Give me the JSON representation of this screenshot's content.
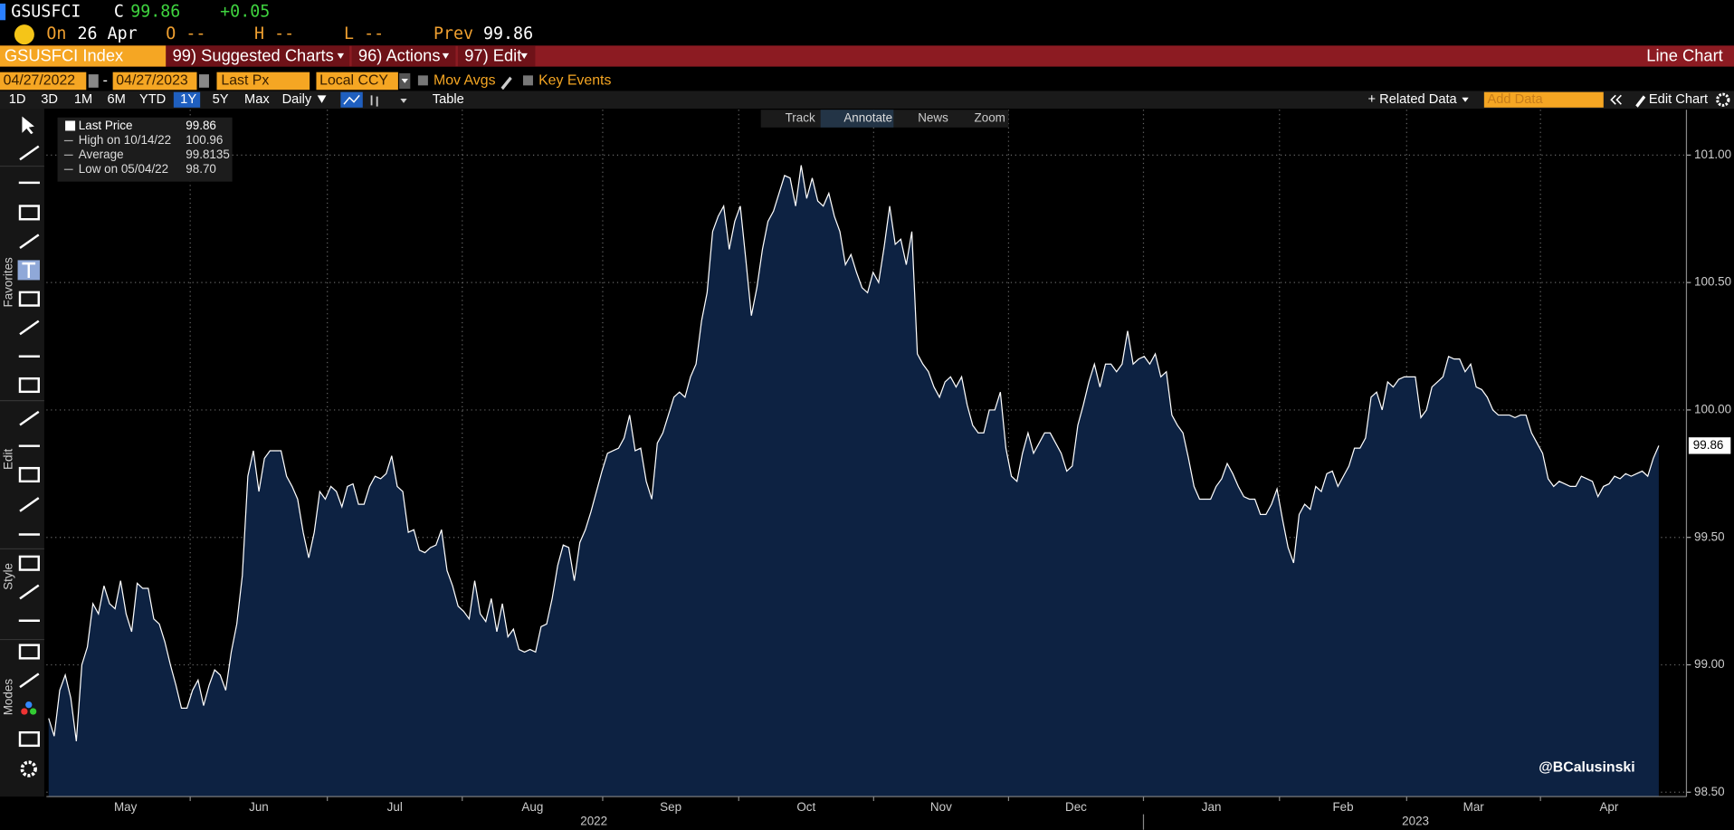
{
  "header": {
    "ticker": "GSUSFCI",
    "c_label": "C",
    "last": "99.86",
    "change": "+0.05",
    "on_label": "On",
    "date": "26 Apr",
    "open": "O --",
    "high": "H --",
    "low": "L --",
    "prev_label": "Prev",
    "prev": "99.86"
  },
  "menu": {
    "security": "GSUSFCI Index",
    "items": [
      "99) Suggested Charts",
      "96) Actions",
      "97) Edit"
    ],
    "chart_type": "Line Chart"
  },
  "controls": {
    "start_date": "04/27/2022",
    "dash": "-",
    "end_date": "04/27/2023",
    "field": "Last Px",
    "currency": "Local CCY",
    "options": [
      "Mov Avgs",
      "Key Events"
    ]
  },
  "toolbar": {
    "periods": [
      {
        "label": "1D"
      },
      {
        "label": "3D"
      },
      {
        "label": "1M"
      },
      {
        "label": "6M"
      },
      {
        "label": "YTD"
      },
      {
        "label": "1Y",
        "active": true
      },
      {
        "label": "5Y"
      },
      {
        "label": "Max"
      }
    ],
    "frequency": "Daily",
    "table": "Table",
    "related": "+ Related Data",
    "add_data": "Add Data",
    "edit_chart": "Edit Chart"
  },
  "chart_tools": [
    "Track",
    "Annotate",
    "News",
    "Zoom"
  ],
  "sidebar_labels": [
    "Favorites",
    "Edit",
    "Style",
    "Modes"
  ],
  "chart_data": {
    "type": "area",
    "series": [
      {
        "name": "Last Price",
        "color": "#ffffff",
        "fill": "#0d2242",
        "values": [
          98.79,
          98.72,
          98.9,
          98.96,
          98.87,
          98.7,
          99.0,
          99.07,
          99.24,
          99.2,
          99.31,
          99.24,
          99.22,
          99.33,
          99.2,
          99.13,
          99.32,
          99.3,
          99.3,
          99.18,
          99.16,
          99.09,
          99.0,
          98.92,
          98.83,
          98.83,
          98.9,
          98.94,
          98.84,
          98.92,
          98.98,
          98.96,
          98.9,
          99.05,
          99.16,
          99.35,
          99.74,
          99.84,
          99.68,
          99.81,
          99.84,
          99.84,
          99.84,
          99.74,
          99.7,
          99.65,
          99.52,
          99.42,
          99.52,
          99.68,
          99.65,
          99.7,
          99.68,
          99.62,
          99.7,
          99.71,
          99.63,
          99.63,
          99.7,
          99.74,
          99.73,
          99.75,
          99.82,
          99.7,
          99.68,
          99.52,
          99.53,
          99.45,
          99.44,
          99.46,
          99.47,
          99.53,
          99.37,
          99.31,
          99.23,
          99.21,
          99.18,
          99.33,
          99.2,
          99.17,
          99.26,
          99.13,
          99.24,
          99.11,
          99.14,
          99.06,
          99.05,
          99.06,
          99.05,
          99.15,
          99.16,
          99.26,
          99.39,
          99.47,
          99.46,
          99.33,
          99.48,
          99.53,
          99.6,
          99.68,
          99.76,
          99.83,
          99.84,
          99.85,
          99.89,
          99.98,
          99.84,
          99.85,
          99.72,
          99.65,
          99.87,
          99.91,
          99.98,
          100.05,
          100.07,
          100.05,
          100.13,
          100.18,
          100.35,
          100.46,
          100.7,
          100.76,
          100.8,
          100.63,
          100.74,
          100.8,
          100.59,
          100.37,
          100.48,
          100.63,
          100.74,
          100.78,
          100.85,
          100.92,
          100.91,
          100.8,
          100.96,
          100.83,
          100.91,
          100.82,
          100.8,
          100.85,
          100.76,
          100.7,
          100.57,
          100.61,
          100.54,
          100.48,
          100.46,
          100.54,
          100.5,
          100.64,
          100.8,
          100.65,
          100.67,
          100.57,
          100.7,
          100.22,
          100.18,
          100.15,
          100.09,
          100.05,
          100.11,
          100.13,
          100.09,
          100.13,
          100.02,
          99.94,
          99.91,
          99.91,
          100.0,
          100.0,
          100.07,
          99.85,
          99.74,
          99.72,
          99.83,
          99.91,
          99.83,
          99.87,
          99.91,
          99.91,
          99.87,
          99.83,
          99.76,
          99.78,
          99.94,
          100.02,
          100.11,
          100.18,
          100.09,
          100.18,
          100.18,
          100.15,
          100.18,
          100.31,
          100.18,
          100.2,
          100.21,
          100.18,
          100.22,
          100.13,
          100.15,
          99.98,
          99.94,
          99.91,
          99.81,
          99.7,
          99.65,
          99.65,
          99.65,
          99.7,
          99.73,
          99.79,
          99.75,
          99.7,
          99.66,
          99.65,
          99.65,
          99.59,
          99.59,
          99.63,
          99.69,
          99.57,
          99.46,
          99.4,
          99.59,
          99.63,
          99.61,
          99.7,
          99.68,
          99.75,
          99.76,
          99.7,
          99.74,
          99.78,
          99.85,
          99.85,
          99.89,
          100.05,
          100.07,
          100.0,
          100.11,
          100.09,
          100.12,
          100.13,
          100.13,
          100.13,
          99.97,
          100.0,
          100.09,
          100.11,
          100.13,
          100.21,
          100.2,
          100.2,
          100.15,
          100.18,
          100.09,
          100.08,
          100.05,
          100.0,
          99.98,
          99.98,
          99.98,
          99.97,
          99.98,
          99.98,
          99.91,
          99.87,
          99.83,
          99.73,
          99.7,
          99.72,
          99.71,
          99.7,
          99.7,
          99.74,
          99.73,
          99.72,
          99.66,
          99.7,
          99.71,
          99.74,
          99.73,
          99.75,
          99.74,
          99.75,
          99.76,
          99.74,
          99.81,
          99.86
        ]
      }
    ],
    "current_label": "99.86",
    "stats": [
      {
        "label": "High on 10/14/22",
        "value": "100.96"
      },
      {
        "label": "Average",
        "value": "99.8135"
      },
      {
        "label": "Low on 05/04/22",
        "value": "98.70"
      }
    ],
    "months": [
      "May",
      "Jun",
      "Jul",
      "Aug",
      "Sep",
      "Oct",
      "Nov",
      "Dec",
      "Jan",
      "Feb",
      "Mar",
      "Apr"
    ],
    "years": [
      "2022",
      "2023"
    ],
    "ylim": [
      98.483,
      101.178
    ],
    "yticks": [
      {
        "value": 98.5,
        "label": "98.50"
      },
      {
        "value": 99,
        "label": "99.00"
      },
      {
        "value": 99.5,
        "label": "99.50"
      },
      {
        "value": 100,
        "label": "100.00"
      },
      {
        "value": 100.5,
        "label": "100.50"
      },
      {
        "value": 101,
        "label": "101.00"
      }
    ],
    "grid": true,
    "watermark": "@BCalusinski"
  }
}
